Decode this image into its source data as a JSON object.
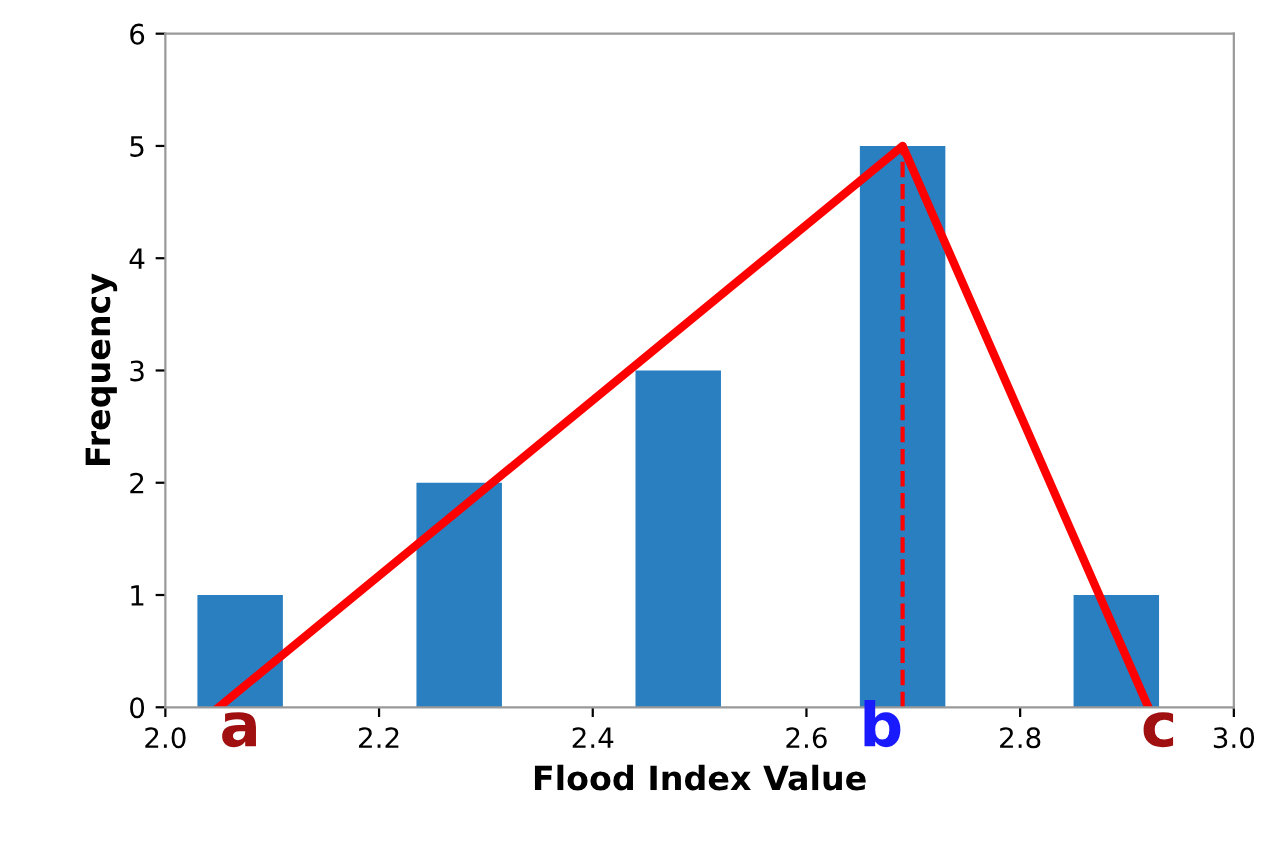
{
  "chart_data": {
    "type": "bar",
    "xlabel": "Flood Index Value",
    "ylabel": "Frequency",
    "xlim": [
      2.0,
      3.0
    ],
    "xticks": [
      {
        "value": 2.0,
        "label": "2.0"
      },
      2.2,
      2.4,
      2.6,
      2.8,
      {
        "value": 3.0,
        "label": "3.0"
      }
    ],
    "ylim": [
      0,
      6
    ],
    "yticks": [
      0,
      1,
      2,
      3,
      4,
      5,
      6
    ],
    "grid": false,
    "legend": false,
    "series": [
      {
        "color": "#2a7fc1",
        "x": [
          2.07,
          2.275,
          2.48,
          2.69,
          2.89
        ],
        "values": [
          1,
          2,
          3,
          5,
          1
        ]
      },
      {
        "type": "line",
        "color": "#ff0000",
        "x": [
          2.05,
          2.69,
          2.92
        ],
        "values": [
          0,
          5,
          0
        ],
        "line_style": "solid"
      },
      {
        "type": "line",
        "color": "#ff0000",
        "x": [
          2.69,
          2.69
        ],
        "values": [
          0,
          5
        ],
        "line_style": "dashed"
      }
    ],
    "annotations": [
      {
        "text": "a",
        "x": 2.07,
        "y": 0
      },
      {
        "text": "b",
        "x": 2.67,
        "y": 0
      },
      {
        "text": "c",
        "x": 2.93,
        "y": 0
      }
    ]
  }
}
